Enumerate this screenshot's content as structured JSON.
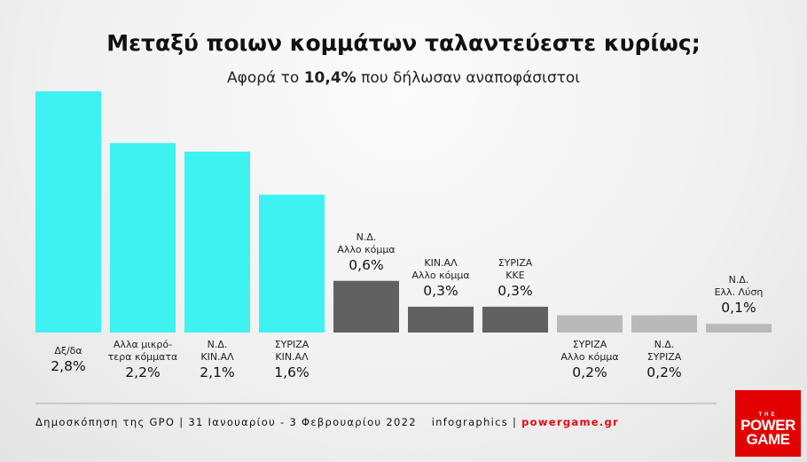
{
  "title": "Μεταξύ ποιων κομμάτων ταλαντεύεστε κυρίως;",
  "subtitle": {
    "prefix": "Αφορά το",
    "highlight": "10,4%",
    "suffix": "που δήλωσαν αναποφάσιστοι"
  },
  "chart_data": {
    "type": "bar",
    "categories": [
      [
        "Δξ/δα"
      ],
      [
        "Αλλα μικρό-",
        "τερα κόμματα"
      ],
      [
        "Ν.Δ.",
        "ΚΙΝ.ΑΛ"
      ],
      [
        "ΣΥΡΙΖΑ",
        "ΚΙΝ.ΑΛ"
      ],
      [
        "Ν.Δ.",
        "Αλλο κόμμα"
      ],
      [
        "ΚΙΝ.ΑΛ",
        "Αλλο κόμμα"
      ],
      [
        "ΣΥΡΙΖΑ",
        "ΚΚΕ"
      ],
      [
        "ΣΥΡΙΖΑ",
        "Αλλο κόμμα"
      ],
      [
        "Ν.Δ.",
        "ΣΥΡΙΖΑ"
      ],
      [
        "Ν.Δ.",
        "Ελλ. Λύση"
      ]
    ],
    "values": [
      2.8,
      2.2,
      2.1,
      1.6,
      0.6,
      0.3,
      0.3,
      0.2,
      0.2,
      0.1
    ],
    "value_labels": [
      "2,8%",
      "2,2%",
      "2,1%",
      "1,6%",
      "0,6%",
      "0,3%",
      "0,3%",
      "0,2%",
      "0,2%",
      "0,1%"
    ],
    "bar_colors": [
      "#3ef2f2",
      "#3ef2f2",
      "#3ef2f2",
      "#3ef2f2",
      "#616161",
      "#616161",
      "#616161",
      "#b9b9b9",
      "#b9b9b9",
      "#b9b9b9"
    ],
    "label_positions": [
      "below",
      "below",
      "below",
      "below",
      "above",
      "above",
      "above",
      "below",
      "below",
      "above"
    ],
    "ylim": [
      0,
      2.8
    ],
    "grid": false
  },
  "footer": {
    "source": "Δημοσκόπηση της GPO | 31 Ιανουαρίου - 3 Φεβρουαρίου 2022",
    "credit": "infographics | ",
    "brand": "powergame.gr"
  },
  "logo": {
    "top": "THE",
    "line1": "POWER",
    "line2": "GAME",
    "color": "#e30000"
  }
}
